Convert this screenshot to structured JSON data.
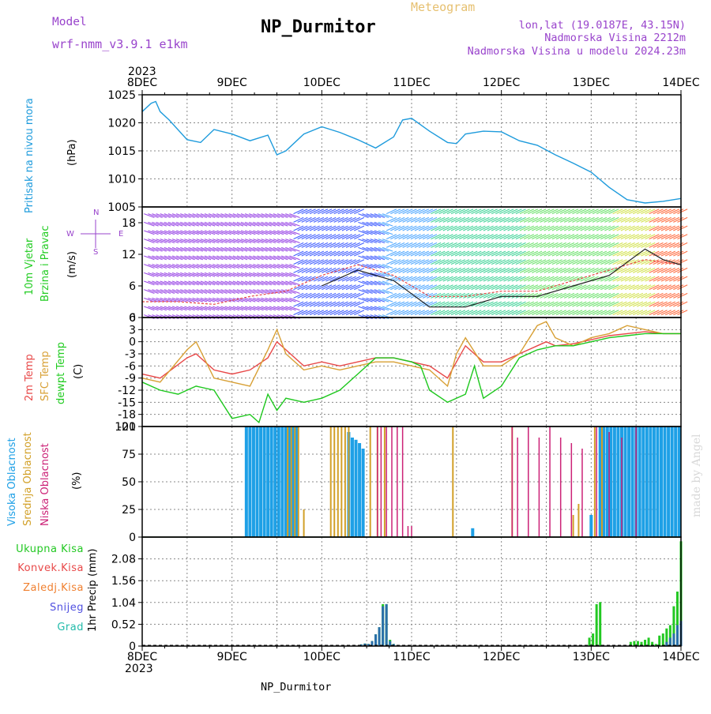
{
  "header": {
    "model_label": "Model",
    "model_value": "wrf-nmm_v3.9.1  e1km",
    "title": "NP_Durmitor",
    "subtitle": "Meteogram",
    "lonlat": "lon,lat (19.0187E, 43.15N)",
    "elev": "Nadmorska Visina 2212m",
    "elev_model": "Nadmorska Visina u modelu 2024.23m",
    "footer": "NP_Durmitor",
    "credit": "made by Angel",
    "year": "2023"
  },
  "colors": {
    "pressure": "#1e9bdc",
    "t2m": "#e84848",
    "sfc": "#d8a035",
    "dew": "#1ec81e",
    "visoka": "#1ea0e6",
    "srednja": "#d2a028",
    "niska": "#cc2277",
    "ukupna": "#22c822",
    "konvek": "#e84848",
    "zaledj": "#f08030",
    "snijeg": "#5050e0",
    "grad": "#22bbaa",
    "purple": "#9944cc"
  },
  "chart_data": [
    {
      "type": "line",
      "name": "pressure",
      "ylabel": "Pritisak na nivou mora",
      "unit": "(hPa)",
      "ylim": [
        1005,
        1025
      ],
      "yticks": [
        1005,
        1010,
        1015,
        1020,
        1025
      ],
      "xlim": [
        0,
        6
      ],
      "xticks": [
        "8DEC",
        "9DEC",
        "10DEC",
        "11DEC",
        "12DEC",
        "13DEC",
        "14DEC"
      ],
      "series": [
        {
          "x": [
            0,
            0.1,
            0.15,
            0.2,
            0.3,
            0.5,
            0.65,
            0.8,
            1.0,
            1.2,
            1.4,
            1.5,
            1.6,
            1.8,
            2.0,
            2.2,
            2.4,
            2.6,
            2.8,
            2.9,
            3.0,
            3.2,
            3.4,
            3.5,
            3.6,
            3.8,
            4.0,
            4.2,
            4.4,
            4.6,
            4.8,
            5.0,
            5.2,
            5.4,
            5.6,
            5.8,
            6.0
          ],
          "y": [
            1022,
            1023.5,
            1023.8,
            1022,
            1020.5,
            1017,
            1016.5,
            1018.8,
            1018,
            1016.8,
            1017.8,
            1014.3,
            1015,
            1018,
            1019.3,
            1018.3,
            1017,
            1015.5,
            1017.5,
            1020.5,
            1020.8,
            1018.5,
            1016.5,
            1016.3,
            1018,
            1018.5,
            1018.4,
            1016.8,
            1016,
            1014.3,
            1012.8,
            1011.2,
            1008.5,
            1006.3,
            1005.7,
            1006,
            1006.5
          ]
        }
      ]
    },
    {
      "type": "line",
      "name": "wind",
      "ylabel": [
        "10m Vjetar",
        "Brzina i Pravac"
      ],
      "unit": "(m/s)",
      "ylim": [
        0,
        21
      ],
      "yticks": [
        0,
        6,
        12,
        18
      ],
      "compass": [
        "N",
        "S",
        "W",
        "E"
      ],
      "series": [
        {
          "name": "speed_red",
          "x": [
            0,
            0.4,
            0.8,
            1.2,
            1.6,
            2.0,
            2.4,
            2.8,
            3.2,
            3.6,
            4.0,
            4.4,
            4.8,
            5.2,
            5.6,
            6.0
          ],
          "y": [
            3,
            3,
            2.5,
            4,
            5,
            8,
            10,
            8,
            4,
            4,
            5,
            5,
            7,
            9,
            11,
            10
          ]
        },
        {
          "name": "speed_black",
          "x": [
            2.0,
            2.4,
            2.8,
            3.2,
            3.6,
            4.0,
            4.4,
            4.8,
            5.2,
            5.6,
            5.8,
            6.0
          ],
          "y": [
            6,
            9,
            7,
            2,
            2,
            4,
            4,
            6,
            8,
            13,
            11,
            10
          ]
        }
      ]
    },
    {
      "type": "line",
      "name": "temperature",
      "ylabel": [
        "2m Temp",
        "SFC Temp",
        "dewpt Temp"
      ],
      "unit": "(C)",
      "ylim": [
        -21,
        6
      ],
      "yticks": [
        -21,
        -18,
        -15,
        -12,
        -9,
        -6,
        -3,
        0,
        3,
        6
      ],
      "series": [
        {
          "name": "2m Temp",
          "x": [
            0,
            0.2,
            0.5,
            0.6,
            0.8,
            1.0,
            1.2,
            1.4,
            1.5,
            1.6,
            1.8,
            2.0,
            2.2,
            2.4,
            2.6,
            2.8,
            3.0,
            3.2,
            3.4,
            3.5,
            3.6,
            3.8,
            4.0,
            4.2,
            4.4,
            4.5,
            4.6,
            4.8,
            5.0,
            5.2,
            5.4,
            5.6,
            5.8,
            6.0
          ],
          "y": [
            -8,
            -9,
            -4,
            -3,
            -7,
            -8,
            -7,
            -4,
            0,
            -2,
            -6,
            -5,
            -6,
            -5,
            -4,
            -4,
            -5,
            -6,
            -9,
            -5,
            -1,
            -5,
            -5,
            -3,
            -1,
            0,
            -1,
            -0.5,
            0.5,
            1.5,
            2,
            2.5,
            2,
            2
          ]
        },
        {
          "name": "SFC Temp",
          "x": [
            0,
            0.2,
            0.5,
            0.6,
            0.8,
            1.0,
            1.2,
            1.4,
            1.5,
            1.6,
            1.8,
            2.0,
            2.2,
            2.4,
            2.6,
            2.8,
            3.0,
            3.2,
            3.4,
            3.5,
            3.6,
            3.8,
            4.0,
            4.2,
            4.4,
            4.5,
            4.6,
            4.8,
            5.0,
            5.2,
            5.4,
            5.6,
            5.8,
            6.0
          ],
          "y": [
            -9,
            -10,
            -2,
            0,
            -9,
            -10,
            -11,
            -2,
            3,
            -3,
            -7,
            -6,
            -7,
            -6,
            -5,
            -5,
            -6,
            -7,
            -11,
            -3,
            1,
            -6,
            -6,
            -3,
            4,
            5,
            1,
            -1,
            1,
            2,
            4,
            3,
            2,
            2
          ]
        },
        {
          "name": "dewpt Temp",
          "x": [
            0,
            0.2,
            0.4,
            0.6,
            0.8,
            1.0,
            1.2,
            1.3,
            1.4,
            1.5,
            1.6,
            1.8,
            2.0,
            2.2,
            2.4,
            2.6,
            2.8,
            3.0,
            3.1,
            3.2,
            3.4,
            3.6,
            3.7,
            3.8,
            4.0,
            4.2,
            4.4,
            4.6,
            4.8,
            5.0,
            5.2,
            5.4,
            5.6,
            5.8,
            6.0
          ],
          "y": [
            -10,
            -12,
            -13,
            -11,
            -12,
            -19,
            -18,
            -20,
            -13,
            -17,
            -14,
            -15,
            -14,
            -12,
            -8,
            -4,
            -4,
            -5,
            -6,
            -12,
            -15,
            -13,
            -6,
            -14,
            -11,
            -4,
            -2,
            -1,
            -1,
            0,
            1,
            1.5,
            2,
            2,
            2
          ]
        }
      ]
    },
    {
      "type": "bar",
      "name": "clouds",
      "ylabel": [
        "Visoka Oblacnost",
        "Srednja Oblacnost",
        "Niska Oblacnost"
      ],
      "unit": "(%)",
      "ylim": [
        0,
        100
      ],
      "yticks": [
        0,
        25,
        50,
        75,
        100
      ],
      "series": [
        {
          "name": "Visoka Oblacnost",
          "x": [
            1.16,
            1.2,
            1.24,
            1.28,
            1.32,
            1.36,
            1.4,
            1.44,
            1.48,
            1.52,
            1.56,
            1.6,
            1.64,
            1.68,
            1.72,
            2.3,
            2.34,
            2.38,
            2.42,
            2.46,
            3.68,
            5.0,
            5.1,
            5.14,
            5.18,
            5.22,
            5.26,
            5.3,
            5.34,
            5.38,
            5.42,
            5.46,
            5.5,
            5.54,
            5.58,
            5.62,
            5.66,
            5.7,
            5.74,
            5.78,
            5.82,
            5.86,
            5.9,
            5.94,
            5.98
          ],
          "y": [
            100,
            100,
            100,
            100,
            100,
            100,
            100,
            100,
            100,
            100,
            100,
            100,
            100,
            100,
            100,
            95,
            90,
            88,
            85,
            80,
            8,
            20,
            100,
            100,
            100,
            100,
            100,
            100,
            100,
            100,
            100,
            100,
            100,
            100,
            100,
            100,
            100,
            100,
            100,
            100,
            100,
            100,
            100,
            100,
            100
          ]
        },
        {
          "name": "Srednja Oblacnost",
          "x": [
            1.62,
            1.66,
            1.7,
            1.74,
            1.8,
            2.1,
            2.14,
            2.18,
            2.22,
            2.26,
            2.3,
            2.54,
            2.62,
            2.7,
            3.46,
            4.12,
            4.8,
            4.86,
            5.04,
            5.12
          ],
          "y": [
            100,
            100,
            100,
            100,
            25,
            100,
            100,
            100,
            100,
            100,
            100,
            100,
            100,
            100,
            100,
            100,
            20,
            30,
            100,
            100
          ]
        },
        {
          "name": "Niska Oblacnost",
          "x": [
            2.62,
            2.66,
            2.72,
            2.78,
            2.84,
            2.9,
            2.96,
            3.0,
            4.12,
            4.18,
            4.3,
            4.42,
            4.54,
            4.66,
            4.78,
            4.9,
            5.06,
            5.2,
            5.34,
            5.5
          ],
          "y": [
            100,
            100,
            100,
            100,
            100,
            100,
            10,
            10,
            100,
            90,
            100,
            90,
            100,
            90,
            85,
            80,
            100,
            95,
            90,
            100
          ]
        }
      ]
    },
    {
      "type": "bar",
      "name": "precip",
      "ylabel": "1hr Precip",
      "unit": "(mm)",
      "ylim": [
        0,
        2.6
      ],
      "yticks": [
        0,
        0.52,
        1.04,
        1.56,
        2.08
      ],
      "legend": [
        "Ukupna Kisa",
        "Konvek.Kisa",
        "Zaledj.Kisa",
        "Snijeg",
        "Grad"
      ],
      "series": [
        {
          "name": "Ukupna Kisa",
          "x": [
            2.44,
            2.48,
            2.52,
            2.56,
            2.6,
            2.64,
            2.68,
            2.72,
            2.76,
            2.8,
            4.98,
            5.02,
            5.06,
            5.1,
            5.44,
            5.48,
            5.52,
            5.56,
            5.6,
            5.64,
            5.68,
            5.72,
            5.76,
            5.8,
            5.84,
            5.88,
            5.92,
            5.96,
            6.0
          ],
          "y": [
            0.04,
            0.06,
            0.05,
            0.12,
            0.28,
            0.45,
            1.0,
            1.0,
            0.15,
            0.05,
            0.2,
            0.3,
            1.0,
            1.05,
            0.1,
            0.12,
            0.12,
            0.1,
            0.15,
            0.2,
            0.1,
            0.05,
            0.25,
            0.3,
            0.42,
            0.5,
            0.95,
            1.3,
            2.5
          ]
        },
        {
          "name": "Snijeg",
          "x": [
            2.44,
            2.48,
            2.52,
            2.56,
            2.6,
            2.64,
            2.68,
            2.72,
            2.76,
            2.8,
            5.84,
            5.88,
            5.92,
            5.96,
            6.0
          ],
          "y": [
            0.04,
            0.06,
            0.05,
            0.12,
            0.28,
            0.45,
            0.95,
            1.0,
            0.12,
            0.05,
            0.1,
            0.2,
            0.3,
            0.5,
            0.6
          ]
        }
      ]
    }
  ]
}
